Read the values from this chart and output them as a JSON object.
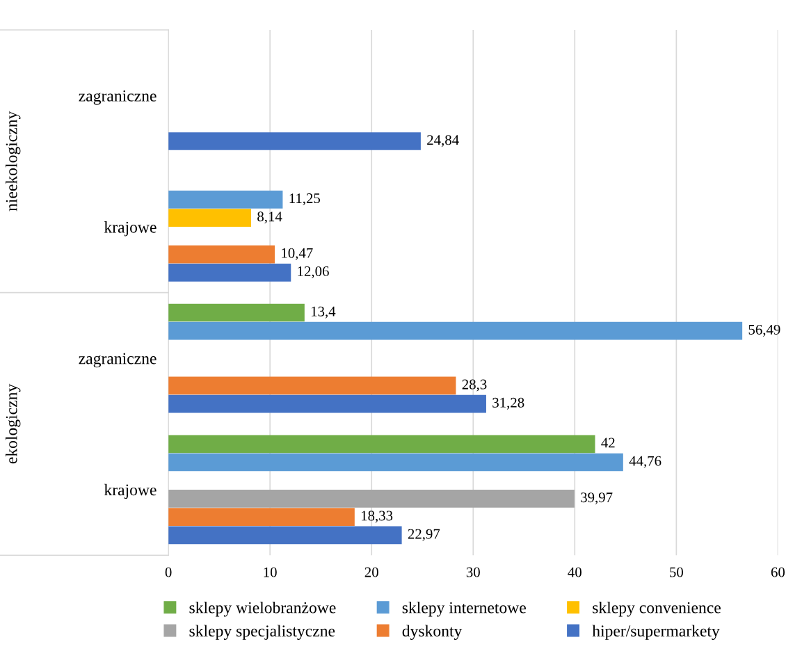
{
  "chart_data": {
    "type": "bar",
    "orientation": "horizontal",
    "categories": [
      "zagraniczne",
      "krajowe",
      "zagraniczne",
      "krajowe"
    ],
    "annotations": [
      "nieekologiczny",
      "ekologiczny"
    ],
    "series": [
      {
        "name": "sklepy wielobranżowe",
        "color": "#70ad47",
        "values": [
          null,
          null,
          13.4,
          42
        ],
        "value_labels": [
          null,
          null,
          "13,4",
          "42"
        ]
      },
      {
        "name": "sklepy internetowe",
        "color": "#5b9bd5",
        "values": [
          null,
          11.25,
          56.49,
          44.76
        ],
        "value_labels": [
          null,
          "11,25",
          "56,49",
          "44,76"
        ]
      },
      {
        "name": "sklepy convenience",
        "color": "#ffc000",
        "values": [
          null,
          8.14,
          null,
          null
        ],
        "value_labels": [
          null,
          "8,14",
          null,
          null
        ]
      },
      {
        "name": "sklepy specjalistyczne",
        "color": "#a5a5a5",
        "values": [
          null,
          null,
          null,
          39.97
        ],
        "value_labels": [
          null,
          null,
          null,
          "39,97"
        ]
      },
      {
        "name": "dyskonty",
        "color": "#ed7d31",
        "values": [
          null,
          10.47,
          28.3,
          18.33
        ],
        "value_labels": [
          null,
          "10,47",
          "28,3",
          "18,33"
        ]
      },
      {
        "name": "hiper/supermarkety",
        "color": "#4472c4",
        "values": [
          24.84,
          12.06,
          31.28,
          22.97
        ],
        "value_labels": [
          "24,84",
          "12,06",
          "31,28",
          "22,97"
        ]
      }
    ],
    "xlim": [
      0,
      60
    ],
    "xticks": [
      0,
      10,
      20,
      30,
      40,
      50,
      60
    ],
    "grid": "x",
    "legend": "bottom"
  }
}
